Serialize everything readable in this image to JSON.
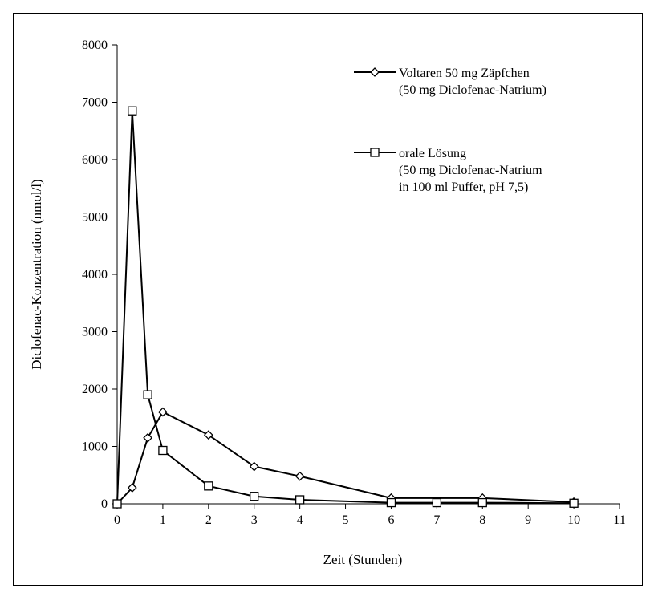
{
  "chart_data": {
    "type": "line",
    "xlabel": "Zeit (Stunden)",
    "ylabel": "Diclofenac-Konzentration (nmol/l)",
    "xlim": [
      0,
      11
    ],
    "ylim": [
      0,
      8000
    ],
    "x_ticks": [
      "0",
      "1",
      "2",
      "3",
      "4",
      "5",
      "6",
      "7",
      "8",
      "9",
      "10",
      "11"
    ],
    "y_ticks": [
      "0",
      "1000",
      "2000",
      "3000",
      "4000",
      "5000",
      "6000",
      "7000",
      "8000"
    ],
    "grid": false,
    "legend_position": "top-right",
    "series": [
      {
        "marker": "diamond",
        "legend_lines": [
          "Voltaren 50 mg Zäpfchen",
          "(50 mg Diclofenac-Natrium)"
        ],
        "x": [
          0,
          0.33,
          0.67,
          1,
          2,
          3,
          4,
          6,
          8,
          10
        ],
        "y": [
          0,
          280,
          1150,
          1600,
          1200,
          650,
          480,
          100,
          100,
          30
        ]
      },
      {
        "marker": "square",
        "legend_lines": [
          "orale Lösung",
          "(50 mg Diclofenac-Natrium",
          "in 100 ml Puffer, pH 7,5)"
        ],
        "x": [
          0,
          0.33,
          0.67,
          1,
          2,
          3,
          4,
          6,
          7,
          8,
          10
        ],
        "y": [
          0,
          6850,
          1900,
          930,
          310,
          130,
          70,
          20,
          20,
          20,
          10
        ]
      }
    ]
  }
}
